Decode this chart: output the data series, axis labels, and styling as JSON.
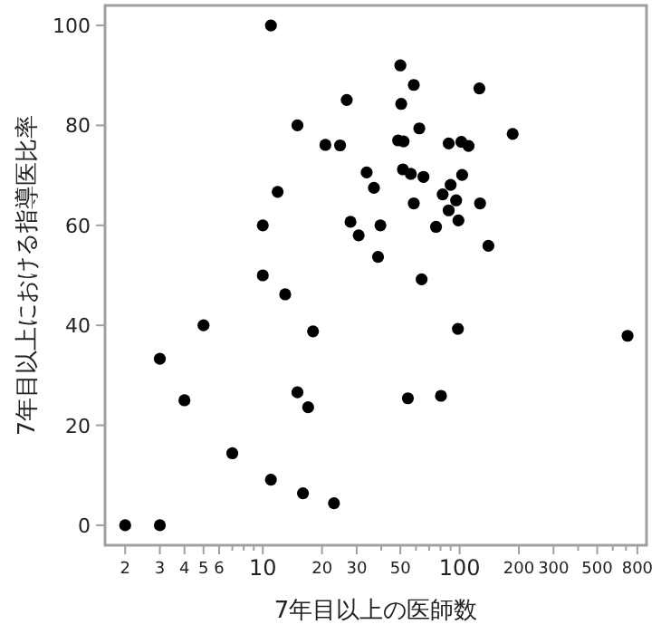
{
  "chart_data": {
    "type": "scatter",
    "xlabel": "7年目以上の医師数",
    "ylabel": "7年目以上における指導医比率",
    "log": "x",
    "marker": "circle",
    "grid": false,
    "xlim": [
      1.58,
      890
    ],
    "ylim": [
      -4,
      104
    ],
    "xticks": [
      2,
      3,
      4,
      5,
      6,
      {
        "value": 7,
        "label": null
      },
      {
        "value": 8,
        "label": null
      },
      {
        "value": 9,
        "label": null
      },
      10,
      20,
      30,
      {
        "value": 40,
        "label": null
      },
      50,
      {
        "value": 60,
        "label": null
      },
      {
        "value": 70,
        "label": null
      },
      {
        "value": 80,
        "label": null
      },
      {
        "value": 90,
        "label": null
      },
      100,
      200,
      300,
      {
        "value": 400,
        "label": null
      },
      500,
      {
        "value": 600,
        "label": null
      },
      {
        "value": 700,
        "label": null
      },
      800
    ],
    "yticks": [
      0,
      20,
      40,
      60,
      80,
      100
    ],
    "series": [
      {
        "color": "#000000",
        "x": [
          2,
          3,
          3,
          4,
          5,
          7,
          10,
          11,
          13,
          15,
          16,
          17,
          18,
          23,
          38.5,
          11,
          26.7,
          15,
          20.8,
          24.7,
          33.7,
          36.7,
          11.9,
          10,
          27.9,
          30.7,
          39.6,
          50,
          50.5,
          58.5,
          126,
          62.4,
          186,
          48.7,
          51.9,
          88,
          102,
          111,
          51.5,
          56.5,
          65.5,
          103,
          90,
          82,
          96,
          58.5,
          127,
          88,
          75.9,
          98.6,
          140,
          64.1,
          98,
          713,
          54.6,
          80.4
        ],
        "values": [
          0,
          0,
          33.3,
          25,
          40,
          14.4,
          50,
          9.1,
          46.2,
          26.6,
          6.4,
          23.6,
          38.8,
          4.4,
          53.7,
          100,
          85.1,
          80,
          76.1,
          76,
          70.6,
          67.5,
          66.7,
          60,
          60.7,
          58,
          60,
          92,
          84.3,
          88.1,
          87.4,
          79.4,
          78.3,
          77,
          76.8,
          76.4,
          76.7,
          75.9,
          71.2,
          70.3,
          69.7,
          70.1,
          68.1,
          66.2,
          65,
          64.4,
          64.4,
          63,
          59.7,
          61,
          55.9,
          49.2,
          39.3,
          37.9,
          25.4,
          25.9
        ]
      }
    ]
  }
}
